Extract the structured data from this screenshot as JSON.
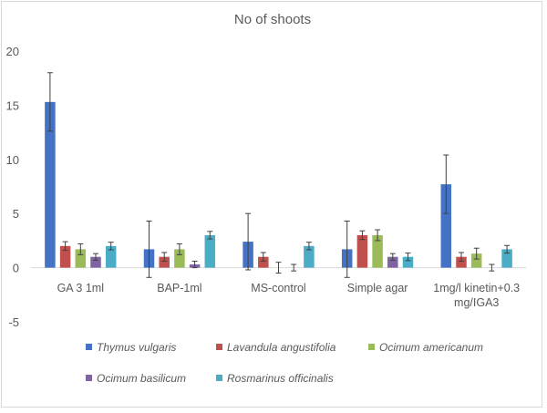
{
  "chart_data": {
    "type": "bar",
    "title": "No of shoots",
    "xlabel": "",
    "ylabel": "",
    "ylim": [
      -5,
      20
    ],
    "yticks": [
      -5,
      0,
      5,
      10,
      15,
      20
    ],
    "grid": false,
    "legend_position": "bottom",
    "categories": [
      "GA 3 1ml",
      "BAP-1ml",
      "MS-control",
      "Simple agar",
      "1mg/l kinetin+0.3 mg/IGA3"
    ],
    "category_lines": [
      [
        "GA 3 1ml"
      ],
      [
        "BAP-1ml"
      ],
      [
        "MS-control"
      ],
      [
        "Simple agar"
      ],
      [
        "1mg/l kinetin+0.3",
        "mg/IGA3"
      ]
    ],
    "series": [
      {
        "name": "Thymus vulgaris",
        "color": "#4472c4",
        "values": [
          15.3,
          1.7,
          2.4,
          1.7,
          7.7
        ],
        "errors": [
          2.7,
          2.6,
          2.6,
          2.6,
          2.7
        ]
      },
      {
        "name": "Lavandula angustifolia",
        "color": "#c0504d",
        "values": [
          2.0,
          1.0,
          1.0,
          3.0,
          1.0
        ],
        "errors": [
          0.4,
          0.4,
          0.4,
          0.4,
          0.4
        ]
      },
      {
        "name": "Ocimum americanum",
        "color": "#9bbb59",
        "values": [
          1.7,
          1.7,
          0.0,
          3.0,
          1.3
        ],
        "errors": [
          0.5,
          0.5,
          0.5,
          0.5,
          0.5
        ]
      },
      {
        "name": "Ocimum basilicum",
        "color": "#8064a2",
        "values": [
          1.0,
          0.3,
          0.0,
          1.0,
          0.0
        ],
        "errors": [
          0.3,
          0.3,
          0.3,
          0.3,
          0.3
        ]
      },
      {
        "name": "Rosmarinus officinalis",
        "color": "#4bacc6",
        "values": [
          2.0,
          3.0,
          2.0,
          1.0,
          1.7
        ],
        "errors": [
          0.35,
          0.35,
          0.35,
          0.35,
          0.35
        ]
      }
    ]
  }
}
